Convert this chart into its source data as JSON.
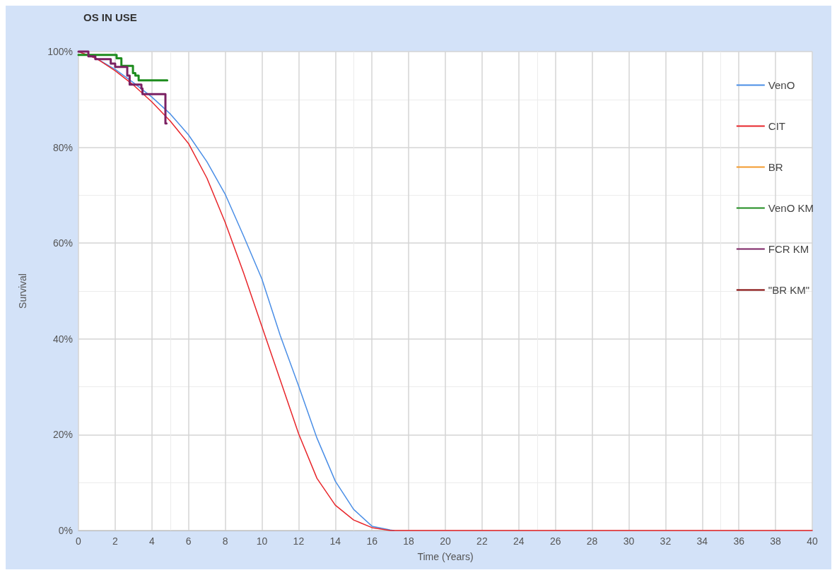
{
  "chart_data": {
    "type": "line",
    "title": "OS IN USE",
    "xlabel": "Time (Years)",
    "ylabel": "Survival",
    "xlim": [
      0,
      40
    ],
    "xticks": [
      0,
      2,
      4,
      6,
      8,
      10,
      12,
      14,
      16,
      18,
      20,
      22,
      24,
      26,
      28,
      30,
      32,
      34,
      36,
      38,
      40
    ],
    "ylim": [
      0,
      100
    ],
    "yticks": [
      {
        "value": 0,
        "label": "0%"
      },
      {
        "value": 20,
        "label": "20%"
      },
      {
        "value": 40,
        "label": "40%"
      },
      {
        "value": 60,
        "label": "60%"
      },
      {
        "value": 80,
        "label": "80%"
      },
      {
        "value": 100,
        "label": "100%"
      }
    ],
    "grid": true,
    "legend": "right",
    "marker": "none",
    "series": [
      {
        "name": "VenO",
        "color": "#4a8ee6",
        "type": "line",
        "x": [
          0,
          1,
          2,
          3,
          4,
          5,
          6,
          7,
          8,
          9,
          10,
          11,
          12,
          13,
          14,
          15,
          16,
          17,
          17.2
        ],
        "values": [
          100,
          98.5,
          96.3,
          93.5,
          90.5,
          87,
          82.6,
          77,
          70.2,
          61.5,
          52.5,
          40.7,
          30.2,
          19.3,
          10.3,
          4.4,
          0.9,
          0.1,
          0
        ]
      },
      {
        "name": "CIT",
        "color": "#e8262b",
        "x": [
          0,
          1,
          2,
          3,
          4,
          5,
          6,
          7,
          8,
          9,
          10,
          11,
          12,
          13,
          14,
          15,
          16,
          17,
          40
        ],
        "values": [
          100,
          98.5,
          96,
          93,
          89.5,
          85.5,
          80.8,
          73.6,
          64.3,
          53.8,
          42.6,
          31.4,
          20.2,
          10.9,
          5.3,
          2.2,
          0.6,
          0,
          0
        ]
      },
      {
        "name": "BR",
        "color": "#f39a2c",
        "type": "line"
      },
      {
        "name": "VenO KM",
        "color": "#1e8c1e",
        "type": "step",
        "x": [
          0,
          2.08,
          2.34,
          2.97,
          3.1,
          3.28,
          4.84
        ],
        "values": [
          99.3,
          98.6,
          97,
          95.5,
          95,
          94,
          94
        ]
      },
      {
        "name": "FCR KM",
        "color": "#7b2163",
        "type": "step",
        "x": [
          0,
          0.54,
          0.92,
          1.76,
          2.0,
          2.66,
          2.79,
          3.43,
          3.49,
          4.74,
          4.8
        ],
        "values": [
          100,
          99,
          98.4,
          97.5,
          96.8,
          95,
          93.1,
          92.3,
          91.1,
          85,
          85
        ]
      },
      {
        "name": "\"BR KM\"",
        "color": "#7f0000",
        "type": "step"
      }
    ]
  }
}
